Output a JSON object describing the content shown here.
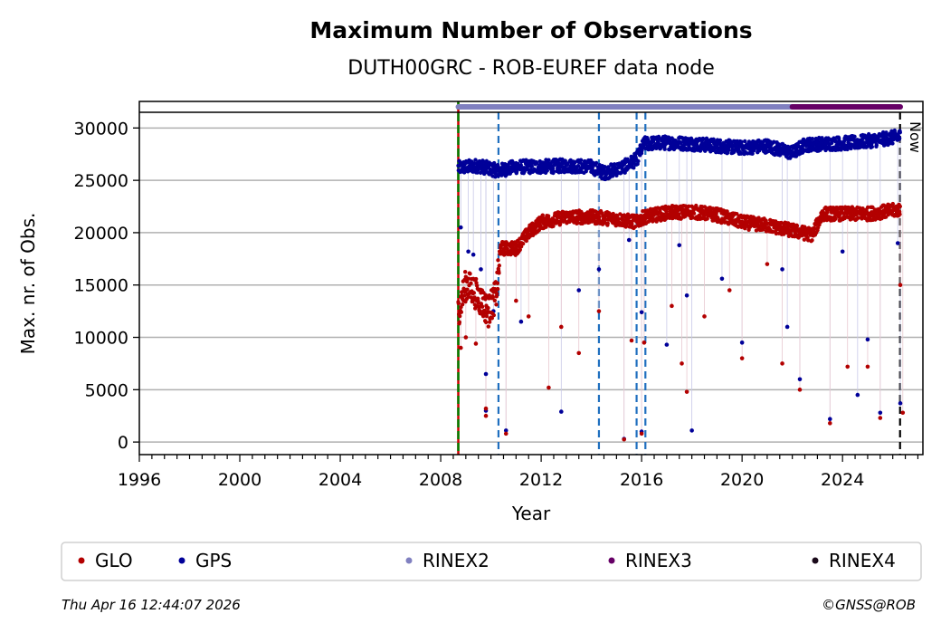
{
  "chart_data": {
    "type": "scatter",
    "title": "Maximum Number of Observations",
    "subtitle": "DUTH00GRC - ROB-EUREF data node",
    "xlabel": "Year",
    "ylabel": "Max. nr. of Obs.",
    "xlim": [
      1996,
      2027.2
    ],
    "ylim": [
      -1200,
      31500
    ],
    "xticks": [
      1996,
      2000,
      2004,
      2008,
      2012,
      2016,
      2020,
      2024
    ],
    "xtick_labels": [
      "1996",
      "2000",
      "2004",
      "2008",
      "2012",
      "2016",
      "2020",
      "2024"
    ],
    "yticks": [
      0,
      5000,
      10000,
      15000,
      20000,
      25000,
      30000
    ],
    "ytick_labels": [
      "0",
      "5000",
      "10000",
      "15000",
      "20000",
      "25000",
      "30000"
    ],
    "grid": "horizontal",
    "series": [
      {
        "name": "GPS",
        "color": "#000099",
        "trend": [
          [
            2008.7,
            26200
          ],
          [
            2009.5,
            26400
          ],
          [
            2010.3,
            25900
          ],
          [
            2011.0,
            26300
          ],
          [
            2012.0,
            26300
          ],
          [
            2013.0,
            26400
          ],
          [
            2014.0,
            26300
          ],
          [
            2014.5,
            25700
          ],
          [
            2015.3,
            26300
          ],
          [
            2015.8,
            27000
          ],
          [
            2016.1,
            28500
          ],
          [
            2017.0,
            28600
          ],
          [
            2018.0,
            28500
          ],
          [
            2019.0,
            28300
          ],
          [
            2020.0,
            28100
          ],
          [
            2021.0,
            28300
          ],
          [
            2022.0,
            27600
          ],
          [
            2022.5,
            28400
          ],
          [
            2023.5,
            28500
          ],
          [
            2024.5,
            28600
          ],
          [
            2025.5,
            28900
          ],
          [
            2026.3,
            29200
          ]
        ],
        "outliers": [
          [
            2008.8,
            20500
          ],
          [
            2009.1,
            18200
          ],
          [
            2009.3,
            17900
          ],
          [
            2009.6,
            16500
          ],
          [
            2009.8,
            6500
          ],
          [
            2009.8,
            3000
          ],
          [
            2010.1,
            12500
          ],
          [
            2010.6,
            1100
          ],
          [
            2011.2,
            11500
          ],
          [
            2012.8,
            2900
          ],
          [
            2013.5,
            14500
          ],
          [
            2014.3,
            16500
          ],
          [
            2015.3,
            300
          ],
          [
            2015.5,
            19300
          ],
          [
            2016.0,
            12400
          ],
          [
            2016.0,
            1000
          ],
          [
            2017.0,
            9300
          ],
          [
            2017.5,
            18800
          ],
          [
            2017.8,
            14000
          ],
          [
            2018.0,
            1100
          ],
          [
            2019.2,
            15600
          ],
          [
            2020.0,
            9500
          ],
          [
            2021.6,
            16500
          ],
          [
            2021.8,
            11000
          ],
          [
            2022.3,
            6000
          ],
          [
            2023.5,
            2200
          ],
          [
            2024.0,
            18200
          ],
          [
            2024.6,
            4500
          ],
          [
            2025.0,
            9800
          ],
          [
            2025.5,
            2800
          ],
          [
            2026.2,
            19000
          ],
          [
            2026.3,
            3700
          ]
        ]
      },
      {
        "name": "GLO",
        "color": "#b30000",
        "trend": [
          [
            2008.7,
            12500
          ],
          [
            2009.0,
            15000
          ],
          [
            2009.3,
            14500
          ],
          [
            2009.6,
            13500
          ],
          [
            2009.9,
            12500
          ],
          [
            2010.2,
            14000
          ],
          [
            2010.4,
            18500
          ],
          [
            2011.0,
            18500
          ],
          [
            2011.5,
            20000
          ],
          [
            2012.0,
            21000
          ],
          [
            2013.0,
            21500
          ],
          [
            2014.0,
            21500
          ],
          [
            2015.0,
            21300
          ],
          [
            2015.8,
            21000
          ],
          [
            2016.1,
            21500
          ],
          [
            2017.0,
            21900
          ],
          [
            2018.0,
            22000
          ],
          [
            2019.0,
            21700
          ],
          [
            2020.0,
            21000
          ],
          [
            2021.0,
            20700
          ],
          [
            2022.0,
            20200
          ],
          [
            2022.8,
            19800
          ],
          [
            2023.2,
            21800
          ],
          [
            2024.0,
            21800
          ],
          [
            2025.0,
            21800
          ],
          [
            2026.3,
            22200
          ]
        ],
        "outliers": [
          [
            2008.8,
            9000
          ],
          [
            2009.0,
            10000
          ],
          [
            2009.4,
            9400
          ],
          [
            2009.8,
            2500
          ],
          [
            2009.8,
            3200
          ],
          [
            2010.6,
            800
          ],
          [
            2011.0,
            13500
          ],
          [
            2011.5,
            12000
          ],
          [
            2012.3,
            5200
          ],
          [
            2012.8,
            11000
          ],
          [
            2013.5,
            8500
          ],
          [
            2014.3,
            12500
          ],
          [
            2015.3,
            250
          ],
          [
            2015.6,
            9700
          ],
          [
            2016.0,
            800
          ],
          [
            2016.1,
            9500
          ],
          [
            2017.2,
            13000
          ],
          [
            2017.6,
            7500
          ],
          [
            2017.8,
            4800
          ],
          [
            2018.5,
            12000
          ],
          [
            2019.5,
            14500
          ],
          [
            2020.0,
            8000
          ],
          [
            2021.0,
            17000
          ],
          [
            2021.6,
            7500
          ],
          [
            2022.3,
            5000
          ],
          [
            2023.5,
            1800
          ],
          [
            2024.2,
            7200
          ],
          [
            2025.0,
            7200
          ],
          [
            2025.5,
            2300
          ],
          [
            2026.3,
            15000
          ],
          [
            2026.4,
            2800
          ]
        ]
      }
    ],
    "rinex_bars": [
      {
        "name": "RINEX2",
        "color": "#8080c0",
        "start": 2008.7,
        "end": 2022.0
      },
      {
        "name": "RINEX3",
        "color": "#660066",
        "start": 2022.0,
        "end": 2026.3
      }
    ],
    "vlines": [
      {
        "x": 2008.7,
        "style": "red-green-dashed",
        "color": "#008000"
      },
      {
        "x": 2010.3,
        "style": "dashed",
        "color": "#1f6fbf"
      },
      {
        "x": 2014.3,
        "style": "dashed",
        "color": "#1f6fbf"
      },
      {
        "x": 2015.8,
        "style": "dashed",
        "color": "#1f6fbf"
      },
      {
        "x": 2016.15,
        "style": "dashed",
        "color": "#1f6fbf"
      },
      {
        "x": 2026.29,
        "style": "dashed",
        "color": "#000000"
      }
    ],
    "now_label": "Now",
    "legend": {
      "placement": "bottom",
      "entries": [
        {
          "label": "GLO",
          "color": "#b30000"
        },
        {
          "label": "GPS",
          "color": "#000099"
        },
        {
          "label": "RINEX2",
          "color": "#8080c0"
        },
        {
          "label": "RINEX3",
          "color": "#660066"
        },
        {
          "label": "RINEX4",
          "color": "#1a0a1a"
        }
      ]
    }
  },
  "footer": {
    "timestamp": "Thu Apr 16 12:44:07 2026",
    "copyright": "©GNSS@ROB"
  }
}
